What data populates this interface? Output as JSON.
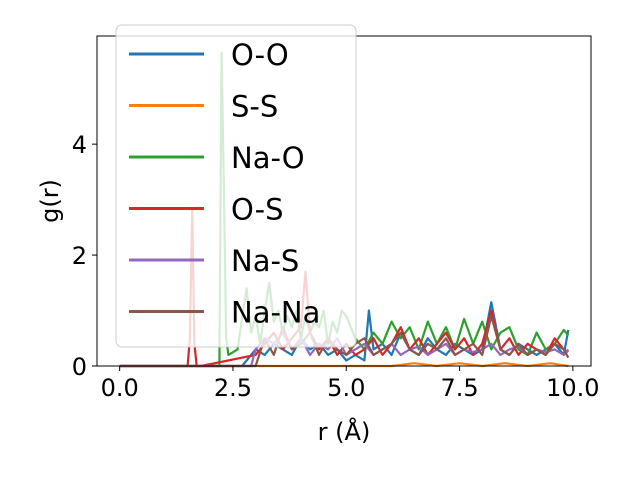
{
  "chart_data": {
    "type": "line",
    "title": "",
    "xlabel": "r (Å)",
    "ylabel": "g(r)",
    "xlim": [
      -0.5,
      10.4
    ],
    "ylim": [
      0,
      5.95
    ],
    "xticks": [
      {
        "value": 0.0,
        "label": "0.0"
      },
      {
        "value": 2.5,
        "label": "2.5"
      },
      {
        "value": 5.0,
        "label": "5.0"
      },
      {
        "value": 7.5,
        "label": "7.5"
      },
      {
        "value": 10.0,
        "label": "10.0"
      }
    ],
    "yticks": [
      {
        "value": 0,
        "label": "0"
      },
      {
        "value": 2,
        "label": "2"
      },
      {
        "value": 4,
        "label": "4"
      }
    ],
    "grid": false,
    "legend": {
      "position": "top-left",
      "alpha": 0.8
    },
    "series": [
      {
        "name": "O-O",
        "color": "#1f77b4",
        "x": [
          0,
          2.7,
          2.8,
          2.9,
          3.0,
          3.2,
          3.4,
          3.6,
          3.8,
          4.0,
          4.2,
          4.4,
          4.6,
          4.8,
          5.0,
          5.2,
          5.4,
          5.5,
          5.6,
          5.8,
          6.0,
          6.2,
          6.4,
          6.6,
          6.8,
          7.0,
          7.2,
          7.4,
          7.6,
          7.8,
          8.0,
          8.2,
          8.4,
          8.6,
          8.8,
          9.0,
          9.2,
          9.4,
          9.6,
          9.8,
          9.9
        ],
        "y": [
          0,
          0,
          0.1,
          0.2,
          0.3,
          0.2,
          0.4,
          0.3,
          0.2,
          0.5,
          0.3,
          0.4,
          0.2,
          0.3,
          0.1,
          0.2,
          0.1,
          1.0,
          0.3,
          0.4,
          0.2,
          0.6,
          0.3,
          0.2,
          0.5,
          0.3,
          0.2,
          0.4,
          0.3,
          0.2,
          0.3,
          1.15,
          0.3,
          0.2,
          0.4,
          0.3,
          0.2,
          0.3,
          0.4,
          0.2,
          0.65
        ]
      },
      {
        "name": "S-S",
        "color": "#ff7f0e",
        "x": [
          0,
          6.0,
          6.5,
          7.0,
          7.5,
          8.0,
          8.5,
          9.0,
          9.5,
          9.9
        ],
        "y": [
          0,
          0,
          0.05,
          0,
          0.05,
          0,
          0.05,
          0,
          0.05,
          0
        ]
      },
      {
        "name": "Na-O",
        "color": "#2ca02c",
        "x": [
          0,
          2.2,
          2.25,
          2.3,
          2.35,
          2.4,
          2.6,
          2.8,
          2.9,
          3.0,
          3.1,
          3.2,
          3.3,
          3.4,
          3.5,
          3.6,
          3.7,
          3.8,
          3.9,
          4.0,
          4.1,
          4.2,
          4.3,
          4.4,
          4.5,
          4.6,
          4.7,
          4.8,
          4.9,
          5.0,
          5.2,
          5.4,
          5.6,
          5.8,
          6.0,
          6.2,
          6.4,
          6.6,
          6.8,
          7.0,
          7.2,
          7.4,
          7.6,
          7.8,
          8.0,
          8.2,
          8.4,
          8.6,
          8.8,
          9.0,
          9.2,
          9.4,
          9.6,
          9.8,
          9.9
        ],
        "y": [
          0,
          0,
          5.65,
          3.2,
          0.5,
          0.2,
          0.3,
          1.4,
          0.6,
          0.9,
          0.4,
          1.0,
          1.5,
          0.8,
          1.0,
          0.6,
          0.9,
          0.7,
          1.0,
          0.5,
          0.9,
          0.6,
          0.8,
          0.7,
          1.0,
          0.4,
          0.8,
          0.6,
          1.0,
          0.9,
          0.5,
          0.3,
          0.6,
          0.4,
          0.8,
          0.5,
          0.7,
          0.3,
          0.8,
          0.4,
          0.7,
          0.3,
          0.85,
          0.4,
          0.8,
          0.3,
          0.6,
          0.7,
          0.3,
          0.2,
          0.6,
          0.3,
          0.4,
          0.65,
          0.55
        ]
      },
      {
        "name": "O-S",
        "color": "#d62728",
        "x": [
          0,
          1.5,
          1.55,
          1.6,
          1.65,
          1.7,
          1.8,
          3.0,
          3.2,
          3.4,
          3.6,
          3.8,
          4.0,
          4.1,
          4.2,
          4.4,
          4.6,
          4.8,
          5.0,
          5.2,
          5.4,
          5.6,
          5.8,
          6.0,
          6.2,
          6.4,
          6.6,
          6.8,
          7.0,
          7.2,
          7.4,
          7.6,
          7.8,
          8.0,
          8.2,
          8.4,
          8.6,
          8.8,
          9.0,
          9.2,
          9.4,
          9.6,
          9.8,
          9.9
        ],
        "y": [
          0,
          0,
          0.5,
          2.85,
          0.4,
          0,
          0,
          0.2,
          0.4,
          0.6,
          0.3,
          0.5,
          0.7,
          1.7,
          0.6,
          0.3,
          0.5,
          0.2,
          0.4,
          0.2,
          0.3,
          0.5,
          0.2,
          0.4,
          0.7,
          0.3,
          0.5,
          0.2,
          0.4,
          0.6,
          0.3,
          0.5,
          0.2,
          0.4,
          1.0,
          0.3,
          0.5,
          0.2,
          0.4,
          0.3,
          0.2,
          0.5,
          0.3,
          0.25
        ]
      },
      {
        "name": "Na-S",
        "color": "#9467bd",
        "x": [
          0,
          2.9,
          3.0,
          3.2,
          3.4,
          3.6,
          3.8,
          4.0,
          4.2,
          4.4,
          4.6,
          4.8,
          5.0,
          5.2,
          5.4,
          5.6,
          5.8,
          6.0,
          6.2,
          6.4,
          6.6,
          6.8,
          7.0,
          7.2,
          7.4,
          7.6,
          7.8,
          8.0,
          8.2,
          8.4,
          8.6,
          8.8,
          9.0,
          9.2,
          9.4,
          9.6,
          9.8,
          9.9
        ],
        "y": [
          0,
          0,
          0.3,
          0.5,
          0.4,
          0.6,
          0.3,
          0.5,
          0.2,
          0.4,
          0.3,
          0.5,
          0.2,
          0.3,
          0.4,
          0.2,
          0.3,
          0.4,
          0.2,
          0.3,
          0.35,
          0.2,
          0.3,
          0.4,
          0.2,
          0.3,
          0.25,
          0.3,
          0.4,
          0.2,
          0.3,
          0.35,
          0.2,
          0.3,
          0.25,
          0.3,
          0.2,
          0.3
        ]
      },
      {
        "name": "Na-Na",
        "color": "#8c564b",
        "x": [
          0,
          3.0,
          3.2,
          3.4,
          3.6,
          3.8,
          4.0,
          4.2,
          4.4,
          4.6,
          4.8,
          5.0,
          5.2,
          5.4,
          5.6,
          5.8,
          6.0,
          6.2,
          6.4,
          6.6,
          6.8,
          7.0,
          7.2,
          7.4,
          7.6,
          7.8,
          8.0,
          8.2,
          8.4,
          8.6,
          8.8,
          9.0,
          9.2,
          9.4,
          9.6,
          9.8,
          9.9
        ],
        "y": [
          0,
          0,
          0.5,
          0.2,
          0.7,
          0.3,
          0.4,
          0.6,
          0.2,
          0.5,
          0.3,
          0.2,
          0.4,
          0.5,
          0.2,
          0.3,
          0.4,
          0.6,
          0.3,
          0.2,
          0.4,
          0.3,
          0.5,
          0.2,
          0.3,
          0.4,
          0.2,
          0.9,
          0.3,
          0.2,
          0.4,
          0.2,
          0.3,
          0.2,
          0.4,
          0.3,
          0.15
        ]
      }
    ]
  }
}
